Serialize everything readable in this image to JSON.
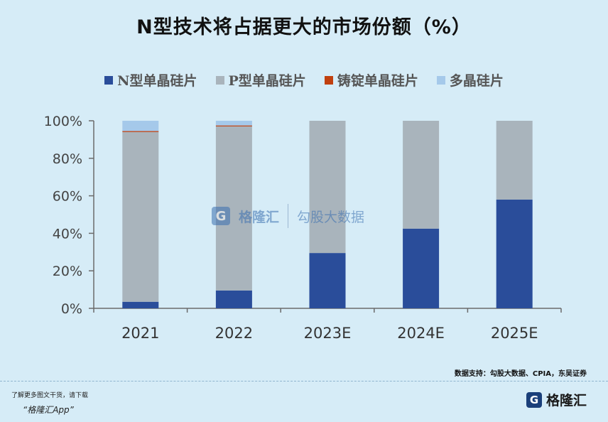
{
  "title": "N型技术将占据更大的市场份额（%）",
  "legend": [
    {
      "label": "N型单晶硅片",
      "color": "#2a4d9a"
    },
    {
      "label": "P型单晶硅片",
      "color": "#a9b4bc"
    },
    {
      "label": "铸锭单晶硅片",
      "color": "#c0400f"
    },
    {
      "label": "多晶硅片",
      "color": "#a5c9ea"
    }
  ],
  "chart_data": {
    "type": "bar",
    "stacked": true,
    "categories": [
      "2021",
      "2022",
      "2023E",
      "2024E",
      "2025E"
    ],
    "series": [
      {
        "name": "N型单晶硅片",
        "values": [
          3.5,
          9.5,
          29.5,
          42.5,
          58
        ],
        "color": "#2a4d9a"
      },
      {
        "name": "P型单晶硅片",
        "values": [
          90.5,
          87.5,
          70.5,
          57.5,
          42
        ],
        "color": "#a9b4bc"
      },
      {
        "name": "铸锭单晶硅片",
        "values": [
          0.5,
          0.5,
          0,
          0,
          0
        ],
        "color": "#c0400f"
      },
      {
        "name": "多晶硅片",
        "values": [
          5.5,
          2.5,
          0,
          0,
          0
        ],
        "color": "#a5c9ea"
      }
    ],
    "ylim": [
      0,
      100
    ],
    "yticks": [
      "0%",
      "20%",
      "40%",
      "60%",
      "80%",
      "100%"
    ],
    "grid": false,
    "legend_position": "top"
  },
  "watermark": {
    "brand": "格隆汇",
    "brand2": "勾股大数据"
  },
  "source": "数据支持：勾股大数据、CPIA，东吴证券",
  "footer": {
    "note": "了解更多图文干货，请下载",
    "app": "“格隆汇App”",
    "brand": "格隆汇"
  }
}
